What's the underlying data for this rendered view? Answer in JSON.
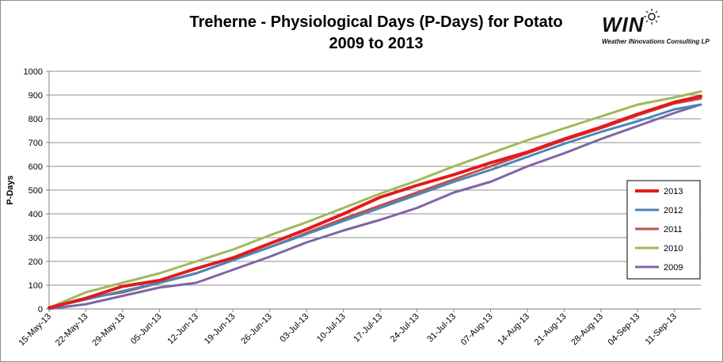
{
  "chart_data": {
    "type": "line",
    "title": [
      "Treherne - Physiological Days (P-Days) for Potato",
      "2009 to 2013"
    ],
    "ylabel": "P-Days",
    "xlabel": "",
    "ylim": [
      0,
      1000
    ],
    "yticks": [
      0,
      100,
      200,
      300,
      400,
      500,
      600,
      700,
      800,
      900,
      1000
    ],
    "xlim": [
      "15-May-13",
      "16-Sep-13"
    ],
    "xticks": [
      "15-May-13",
      "22-May-13",
      "29-May-13",
      "05-Jun-13",
      "12-Jun-13",
      "19-Jun-13",
      "26-Jun-13",
      "03-Jul-13",
      "10-Jul-13",
      "17-Jul-13",
      "24-Jul-13",
      "31-Jul-13",
      "07-Aug-13",
      "14-Aug-13",
      "21-Aug-13",
      "28-Aug-13",
      "04-Sep-13",
      "11-Sep-13"
    ],
    "grid": true,
    "legend_position": "right",
    "series": [
      {
        "name": "2013",
        "color": "#e31a1c",
        "width": 4,
        "points": [
          [
            "15-May-13",
            5
          ],
          [
            "22-May-13",
            45
          ],
          [
            "29-May-13",
            95
          ],
          [
            "05-Jun-13",
            120
          ],
          [
            "12-Jun-13",
            170
          ],
          [
            "19-Jun-13",
            215
          ],
          [
            "26-Jun-13",
            275
          ],
          [
            "03-Jul-13",
            335
          ],
          [
            "10-Jul-13",
            400
          ],
          [
            "17-Jul-13",
            470
          ],
          [
            "24-Jul-13",
            520
          ],
          [
            "31-Jul-13",
            565
          ],
          [
            "07-Aug-13",
            615
          ],
          [
            "14-Aug-13",
            660
          ],
          [
            "21-Aug-13",
            715
          ],
          [
            "28-Aug-13",
            765
          ],
          [
            "04-Sep-13",
            820
          ],
          [
            "11-Sep-13",
            870
          ],
          [
            "16-Sep-13",
            895
          ]
        ]
      },
      {
        "name": "2012",
        "color": "#4a86b8",
        "width": 3,
        "points": [
          [
            "15-May-13",
            5
          ],
          [
            "22-May-13",
            40
          ],
          [
            "29-May-13",
            75
          ],
          [
            "05-Jun-13",
            110
          ],
          [
            "12-Jun-13",
            150
          ],
          [
            "19-Jun-13",
            205
          ],
          [
            "26-Jun-13",
            260
          ],
          [
            "03-Jul-13",
            315
          ],
          [
            "10-Jul-13",
            370
          ],
          [
            "17-Jul-13",
            425
          ],
          [
            "24-Jul-13",
            480
          ],
          [
            "31-Jul-13",
            535
          ],
          [
            "07-Aug-13",
            585
          ],
          [
            "14-Aug-13",
            640
          ],
          [
            "21-Aug-13",
            695
          ],
          [
            "28-Aug-13",
            745
          ],
          [
            "04-Sep-13",
            790
          ],
          [
            "11-Sep-13",
            840
          ],
          [
            "16-Sep-13",
            860
          ]
        ]
      },
      {
        "name": "2011",
        "color": "#c0504d",
        "width": 3,
        "points": [
          [
            "15-May-13",
            3
          ],
          [
            "22-May-13",
            45
          ],
          [
            "29-May-13",
            70
          ],
          [
            "05-Jun-13",
            110
          ],
          [
            "12-Jun-13",
            150
          ],
          [
            "19-Jun-13",
            205
          ],
          [
            "26-Jun-13",
            260
          ],
          [
            "03-Jul-13",
            320
          ],
          [
            "10-Jul-13",
            380
          ],
          [
            "17-Jul-13",
            435
          ],
          [
            "24-Jul-13",
            490
          ],
          [
            "31-Jul-13",
            545
          ],
          [
            "07-Aug-13",
            600
          ],
          [
            "14-Aug-13",
            655
          ],
          [
            "21-Aug-13",
            710
          ],
          [
            "28-Aug-13",
            760
          ],
          [
            "04-Sep-13",
            815
          ],
          [
            "11-Sep-13",
            865
          ],
          [
            "16-Sep-13",
            885
          ]
        ]
      },
      {
        "name": "2010",
        "color": "#9bbb59",
        "width": 3,
        "points": [
          [
            "15-May-13",
            5
          ],
          [
            "22-May-13",
            70
          ],
          [
            "29-May-13",
            110
          ],
          [
            "05-Jun-13",
            150
          ],
          [
            "12-Jun-13",
            200
          ],
          [
            "19-Jun-13",
            250
          ],
          [
            "26-Jun-13",
            310
          ],
          [
            "03-Jul-13",
            365
          ],
          [
            "10-Jul-13",
            425
          ],
          [
            "17-Jul-13",
            485
          ],
          [
            "24-Jul-13",
            540
          ],
          [
            "31-Jul-13",
            600
          ],
          [
            "07-Aug-13",
            655
          ],
          [
            "14-Aug-13",
            710
          ],
          [
            "21-Aug-13",
            760
          ],
          [
            "28-Aug-13",
            810
          ],
          [
            "04-Sep-13",
            860
          ],
          [
            "11-Sep-13",
            890
          ],
          [
            "16-Sep-13",
            915
          ]
        ]
      },
      {
        "name": "2009",
        "color": "#8064a2",
        "width": 3,
        "points": [
          [
            "15-May-13",
            0
          ],
          [
            "22-May-13",
            20
          ],
          [
            "29-May-13",
            55
          ],
          [
            "05-Jun-13",
            90
          ],
          [
            "12-Jun-13",
            110
          ],
          [
            "19-Jun-13",
            165
          ],
          [
            "26-Jun-13",
            220
          ],
          [
            "03-Jul-13",
            280
          ],
          [
            "10-Jul-13",
            330
          ],
          [
            "17-Jul-13",
            375
          ],
          [
            "24-Jul-13",
            425
          ],
          [
            "31-Jul-13",
            490
          ],
          [
            "07-Aug-13",
            535
          ],
          [
            "14-Aug-13",
            600
          ],
          [
            "21-Aug-13",
            655
          ],
          [
            "28-Aug-13",
            715
          ],
          [
            "04-Sep-13",
            770
          ],
          [
            "11-Sep-13",
            825
          ],
          [
            "16-Sep-13",
            860
          ]
        ]
      }
    ]
  },
  "logo": {
    "text": "WIN",
    "subtitle": "Weather INnovations Consulting LP"
  }
}
